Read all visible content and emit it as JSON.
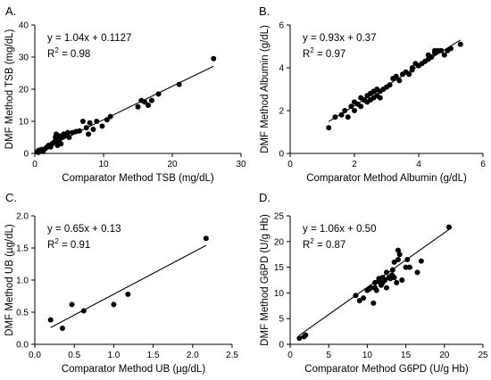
{
  "chart_data": [
    {
      "type": "scatter",
      "panel_label": "A.",
      "xlabel": "Comparator Method TSB (mg/dL)",
      "ylabel": "DMF Method TSB (mg/dL)",
      "xlim": [
        0,
        30
      ],
      "ylim": [
        0,
        40
      ],
      "xticks": [
        0,
        10,
        20,
        30
      ],
      "yticks": [
        0,
        10,
        20,
        30,
        40
      ],
      "equation": "y = 1.04x + 0.1127",
      "r2_label": "R",
      "r2_sup": "2",
      "r2_value": " = 0.98",
      "fit": {
        "slope": 1.04,
        "intercept": 0.1127,
        "x_range": [
          0.2,
          26
        ]
      },
      "x": [
        0.3,
        0.5,
        0.6,
        0.8,
        1.0,
        1.2,
        1.5,
        1.8,
        2.0,
        2.3,
        2.5,
        2.8,
        3.0,
        3.1,
        3.2,
        3.3,
        3.5,
        3.6,
        3.8,
        4.0,
        4.2,
        4.5,
        4.8,
        5.0,
        5.5,
        6.0,
        6.5,
        7.0,
        7.5,
        7.8,
        8.0,
        8.5,
        9.0,
        9.8,
        10.5,
        11.0,
        15.0,
        15.5,
        16.0,
        16.5,
        17.0,
        18.0,
        21.0,
        26.0
      ],
      "y": [
        0.5,
        0.3,
        1.0,
        0.8,
        1.2,
        0.6,
        1.5,
        2.0,
        2.5,
        2.0,
        3.0,
        3.5,
        5.0,
        6.0,
        4.0,
        2.5,
        5.5,
        4.5,
        3.0,
        5.0,
        6.0,
        5.5,
        6.5,
        5.0,
        6.5,
        6.8,
        7.0,
        10.0,
        8.0,
        6.0,
        9.5,
        7.5,
        10.0,
        8.5,
        10.5,
        11.5,
        14.5,
        16.5,
        16.0,
        15.0,
        16.5,
        18.5,
        21.5,
        29.5
      ]
    },
    {
      "type": "scatter",
      "panel_label": "B.",
      "xlabel": "Comparator Method Albumin (g/dL)",
      "ylabel": "DMF Method Albumin (g/dL)",
      "xlim": [
        0,
        6
      ],
      "ylim": [
        0,
        6
      ],
      "xticks": [
        0,
        2,
        4,
        6
      ],
      "yticks": [
        0,
        2,
        4,
        6
      ],
      "equation": "y = 0.93x + 0.37",
      "r2_label": "R",
      "r2_sup": "2",
      "r2_value": " = 0.97",
      "fit": {
        "slope": 0.93,
        "intercept": 0.37,
        "x_range": [
          1.2,
          5.3
        ]
      },
      "x": [
        1.2,
        1.4,
        1.6,
        1.7,
        1.8,
        1.9,
        2.0,
        2.0,
        2.1,
        2.2,
        2.2,
        2.3,
        2.4,
        2.4,
        2.5,
        2.5,
        2.6,
        2.6,
        2.7,
        2.7,
        2.8,
        2.8,
        2.9,
        3.0,
        3.1,
        3.2,
        3.3,
        3.4,
        3.5,
        3.6,
        3.7,
        3.8,
        3.8,
        3.9,
        4.0,
        4.1,
        4.2,
        4.3,
        4.3,
        4.4,
        4.5,
        4.5,
        4.6,
        4.7,
        4.8,
        4.9,
        5.0,
        5.3
      ],
      "y": [
        1.2,
        1.7,
        1.8,
        2.0,
        1.7,
        2.2,
        2.0,
        2.4,
        2.3,
        2.6,
        2.2,
        2.5,
        2.4,
        2.7,
        2.8,
        2.5,
        2.9,
        2.6,
        2.7,
        3.0,
        2.9,
        2.6,
        3.0,
        3.1,
        3.2,
        3.5,
        3.6,
        3.4,
        3.7,
        3.8,
        3.7,
        4.0,
        3.9,
        4.2,
        4.1,
        4.2,
        4.3,
        4.4,
        4.6,
        4.5,
        4.8,
        4.7,
        4.8,
        4.8,
        4.6,
        4.8,
        4.9,
        5.1
      ]
    },
    {
      "type": "scatter",
      "panel_label": "C.",
      "xlabel": "Comparator Method UB (µg/dL)",
      "ylabel": "DMF Method UB (µg/dL)",
      "xlim": [
        0,
        2.5
      ],
      "ylim": [
        0,
        2.0
      ],
      "xticks": [
        0,
        0.5,
        1.0,
        1.5,
        2.0,
        2.5
      ],
      "yticks": [
        0,
        0.5,
        1.0,
        1.5,
        2.0
      ],
      "xtick_labels": [
        "0.0",
        "0.5",
        "1.0",
        "1.5",
        "2.0",
        "2.5"
      ],
      "ytick_labels": [
        "0.0",
        "0.5",
        "1.0",
        "1.5",
        "2.0"
      ],
      "equation": "y = 0.65x + 0.13",
      "r2_label": "R",
      "r2_sup": "2",
      "r2_value": " = 0.91",
      "fit": {
        "slope": 0.65,
        "intercept": 0.13,
        "x_range": [
          0.2,
          2.17
        ]
      },
      "x": [
        0.2,
        0.35,
        0.47,
        0.62,
        1.0,
        1.18,
        2.17
      ],
      "y": [
        0.38,
        0.25,
        0.62,
        0.52,
        0.62,
        0.78,
        1.65
      ]
    },
    {
      "type": "scatter",
      "panel_label": "D.",
      "xlabel": "Comparator Method G6PD (U/g Hb)",
      "ylabel": "DMF Method G6PD (U/g Hb)",
      "xlim": [
        0,
        25
      ],
      "ylim": [
        0,
        25
      ],
      "xticks": [
        0,
        5,
        10,
        15,
        20,
        25
      ],
      "yticks": [
        0,
        5,
        10,
        15,
        20,
        25
      ],
      "equation": "y = 1.06x + 0.50",
      "r2_label": "R",
      "r2_sup": "2",
      "r2_value": " = 0.87",
      "fit": {
        "slope": 1.06,
        "intercept": 0.5,
        "x_range": [
          1.2,
          20.6
        ]
      },
      "x": [
        1.2,
        1.8,
        2.0,
        8.5,
        9.0,
        9.5,
        10.0,
        10.3,
        10.5,
        10.8,
        11.0,
        11.0,
        11.2,
        11.5,
        11.5,
        11.8,
        12.0,
        12.0,
        12.3,
        12.5,
        12.5,
        12.8,
        13.0,
        13.2,
        13.3,
        13.5,
        13.5,
        13.8,
        14.0,
        14.0,
        14.2,
        14.5,
        15.0,
        15.2,
        15.5,
        16.5,
        17.0,
        20.6
      ],
      "y": [
        1.2,
        1.5,
        1.8,
        9.5,
        8.5,
        9.0,
        10.5,
        10.8,
        11.0,
        8.0,
        11.0,
        12.0,
        10.5,
        12.2,
        12.8,
        11.5,
        13.0,
        12.0,
        12.5,
        14.0,
        11.0,
        13.0,
        12.8,
        13.5,
        14.5,
        13.0,
        16.0,
        12.0,
        16.5,
        18.3,
        17.5,
        12.5,
        15.0,
        16.5,
        15.0,
        14.0,
        16.2,
        22.8
      ]
    }
  ]
}
